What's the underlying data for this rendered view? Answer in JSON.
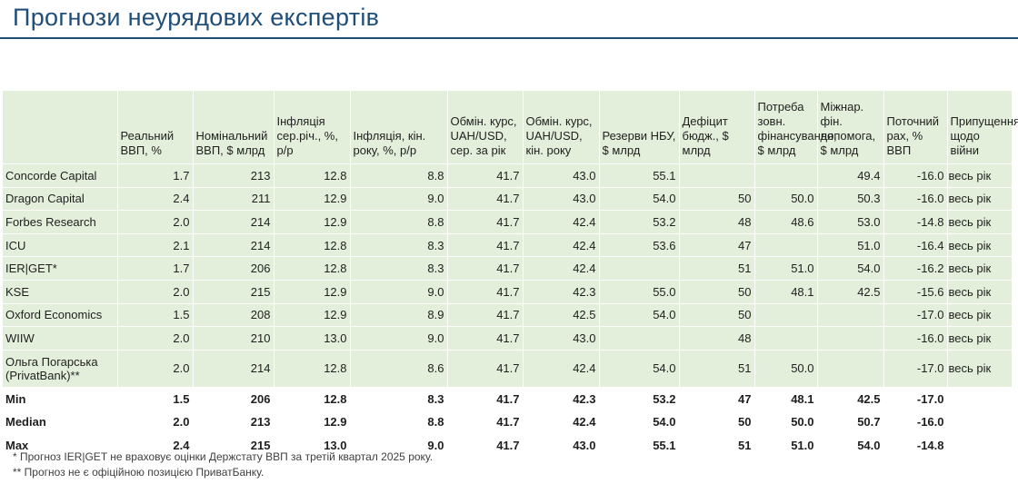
{
  "title": "Прогнози неурядових експертів",
  "headers": [
    "",
    "Реальний ВВП, %",
    "Номінальний ВВП, $ млрд",
    "Інфляція сер.річ., %, р/р",
    "Інфляція, кін. року, %, р/р",
    "Обмін. курс, UAH/USD, сер. за рік",
    "Обмін. курс, UAH/USD, кін. року",
    "Резерви НБУ, $ млрд",
    "Дефіцит бюдж., $ млрд",
    "Потреба зовн. фінансування, $ млрд",
    "Міжнар. фін. допомога, $ млрд",
    "Поточний рах, % ВВП",
    "Припущення щодо війни"
  ],
  "rows": [
    [
      "Concorde Capital",
      "1.7",
      "213",
      "12.8",
      "8.8",
      "41.7",
      "43.0",
      "55.1",
      "",
      "",
      "49.4",
      "-16.0",
      "весь рік"
    ],
    [
      "Dragon Capital",
      "2.4",
      "211",
      "12.9",
      "9.0",
      "41.7",
      "43.0",
      "54.0",
      "50",
      "50.0",
      "50.3",
      "-16.0",
      "весь рік"
    ],
    [
      "Forbes Research",
      "2.0",
      "214",
      "12.9",
      "8.8",
      "41.7",
      "42.4",
      "53.2",
      "48",
      "48.6",
      "53.0",
      "-14.8",
      "весь рік"
    ],
    [
      "ICU",
      "2.1",
      "214",
      "12.8",
      "8.3",
      "41.7",
      "42.4",
      "53.6",
      "47",
      "",
      "51.0",
      "-16.4",
      "весь рік"
    ],
    [
      "IER|GET*",
      "1.7",
      "206",
      "12.8",
      "8.3",
      "41.7",
      "42.4",
      "",
      "51",
      "51.0",
      "54.0",
      "-16.2",
      "весь рік"
    ],
    [
      "KSE",
      "2.0",
      "215",
      "12.9",
      "9.0",
      "41.7",
      "42.3",
      "55.0",
      "50",
      "48.1",
      "42.5",
      "-15.6",
      "весь рік"
    ],
    [
      "Oxford Economics",
      "1.5",
      "208",
      "12.9",
      "8.9",
      "41.7",
      "42.5",
      "54.0",
      "50",
      "",
      "",
      "-17.0",
      "весь рік"
    ],
    [
      "WIIW",
      "2.0",
      "210",
      "13.0",
      "9.0",
      "41.7",
      "43.0",
      "",
      "48",
      "",
      "",
      "-16.0",
      "весь рік"
    ],
    [
      "Ольга Погарська (PrivatBank)**",
      "2.0",
      "214",
      "12.8",
      "8.6",
      "41.7",
      "42.4",
      "54.0",
      "51",
      "50.0",
      "",
      "-17.0",
      "весь рік"
    ]
  ],
  "summary": [
    [
      "Min",
      "1.5",
      "206",
      "12.8",
      "8.3",
      "41.7",
      "42.3",
      "53.2",
      "47",
      "48.1",
      "42.5",
      "-17.0",
      ""
    ],
    [
      "Median",
      "2.0",
      "213",
      "12.9",
      "8.8",
      "41.7",
      "42.4",
      "54.0",
      "50",
      "50.0",
      "50.7",
      "-16.0",
      ""
    ],
    [
      "Max",
      "2.4",
      "215",
      "13.0",
      "9.0",
      "41.7",
      "43.0",
      "55.1",
      "51",
      "51.0",
      "54.0",
      "-14.8",
      ""
    ]
  ],
  "notes": [
    "* Прогноз IER|GET не враховує оцінки Держстату ВВП за третій квартал 2025 року.",
    "** Прогноз не є офіційною позицією ПриватБанку."
  ]
}
